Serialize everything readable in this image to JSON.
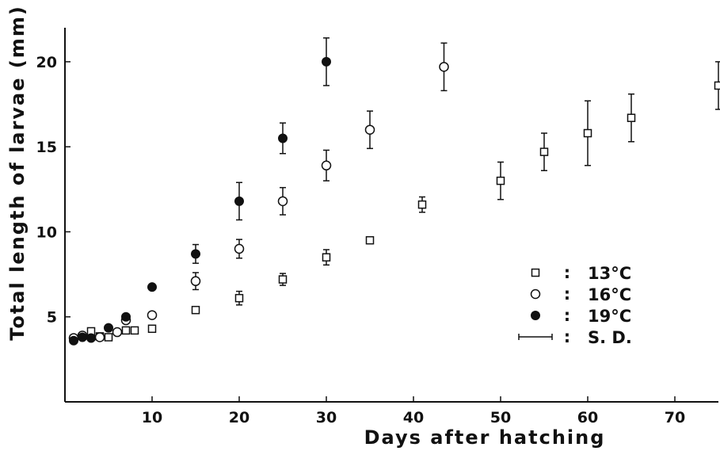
{
  "chart_data": {
    "type": "scatter",
    "xlabel": "Days after hatching",
    "ylabel": "Total length of larvae (mm)",
    "xlim": [
      0,
      75
    ],
    "ylim": [
      0,
      22
    ],
    "x_ticks": [
      10,
      20,
      30,
      40,
      50,
      60,
      70
    ],
    "y_ticks": [
      5,
      10,
      15,
      20
    ],
    "grid": false,
    "legend_position": "right-center",
    "series": [
      {
        "name": "13°C",
        "marker": "open-square",
        "points": [
          {
            "x": 1,
            "y": 3.7,
            "sd": null
          },
          {
            "x": 3,
            "y": 4.15,
            "sd": null
          },
          {
            "x": 4,
            "y": 3.85,
            "sd": null
          },
          {
            "x": 5,
            "y": 3.8,
            "sd": null
          },
          {
            "x": 7,
            "y": 4.2,
            "sd": null
          },
          {
            "x": 8,
            "y": 4.2,
            "sd": null
          },
          {
            "x": 10,
            "y": 4.3,
            "sd": null
          },
          {
            "x": 15,
            "y": 5.4,
            "sd": null
          },
          {
            "x": 20,
            "y": 6.1,
            "sd": 0.4
          },
          {
            "x": 25,
            "y": 7.2,
            "sd": 0.35
          },
          {
            "x": 30,
            "y": 8.5,
            "sd": 0.45
          },
          {
            "x": 35,
            "y": 9.5,
            "sd": null
          },
          {
            "x": 41,
            "y": 11.6,
            "sd": 0.45
          },
          {
            "x": 50,
            "y": 13.0,
            "sd": 1.1
          },
          {
            "x": 55,
            "y": 14.7,
            "sd": 1.1
          },
          {
            "x": 60,
            "y": 15.8,
            "sd": 1.9
          },
          {
            "x": 65,
            "y": 16.7,
            "sd": 1.4
          },
          {
            "x": 75,
            "y": 18.6,
            "sd": 1.4
          }
        ]
      },
      {
        "name": "16°C",
        "marker": "open-circle",
        "points": [
          {
            "x": 1,
            "y": 3.75,
            "sd": null
          },
          {
            "x": 2,
            "y": 3.9,
            "sd": null
          },
          {
            "x": 4,
            "y": 3.8,
            "sd": null
          },
          {
            "x": 6,
            "y": 4.1,
            "sd": null
          },
          {
            "x": 7,
            "y": 4.8,
            "sd": null
          },
          {
            "x": 10,
            "y": 5.1,
            "sd": null
          },
          {
            "x": 15,
            "y": 7.1,
            "sd": 0.5
          },
          {
            "x": 20,
            "y": 9.0,
            "sd": 0.55
          },
          {
            "x": 25,
            "y": 11.8,
            "sd": 0.8
          },
          {
            "x": 30,
            "y": 13.9,
            "sd": 0.9
          },
          {
            "x": 35,
            "y": 16.0,
            "sd": 1.1
          },
          {
            "x": 43.5,
            "y": 19.7,
            "sd": 1.4
          }
        ]
      },
      {
        "name": "19°C",
        "marker": "filled-circle",
        "points": [
          {
            "x": 1,
            "y": 3.6,
            "sd": null
          },
          {
            "x": 2,
            "y": 3.8,
            "sd": null
          },
          {
            "x": 3,
            "y": 3.75,
            "sd": null
          },
          {
            "x": 5,
            "y": 4.35,
            "sd": null
          },
          {
            "x": 7,
            "y": 5.0,
            "sd": null
          },
          {
            "x": 10,
            "y": 6.75,
            "sd": null
          },
          {
            "x": 15,
            "y": 8.7,
            "sd": 0.55
          },
          {
            "x": 20,
            "y": 11.8,
            "sd": 1.1
          },
          {
            "x": 25,
            "y": 15.5,
            "sd": 0.9
          },
          {
            "x": 30,
            "y": 20.0,
            "sd": 1.4
          }
        ]
      }
    ],
    "legend": [
      {
        "marker": "open-square",
        "label": "13°C"
      },
      {
        "marker": "open-circle",
        "label": "16°C"
      },
      {
        "marker": "filled-circle",
        "label": "19°C"
      },
      {
        "marker": "error-bar",
        "label": "S. D."
      }
    ],
    "legend_separator": ":"
  }
}
